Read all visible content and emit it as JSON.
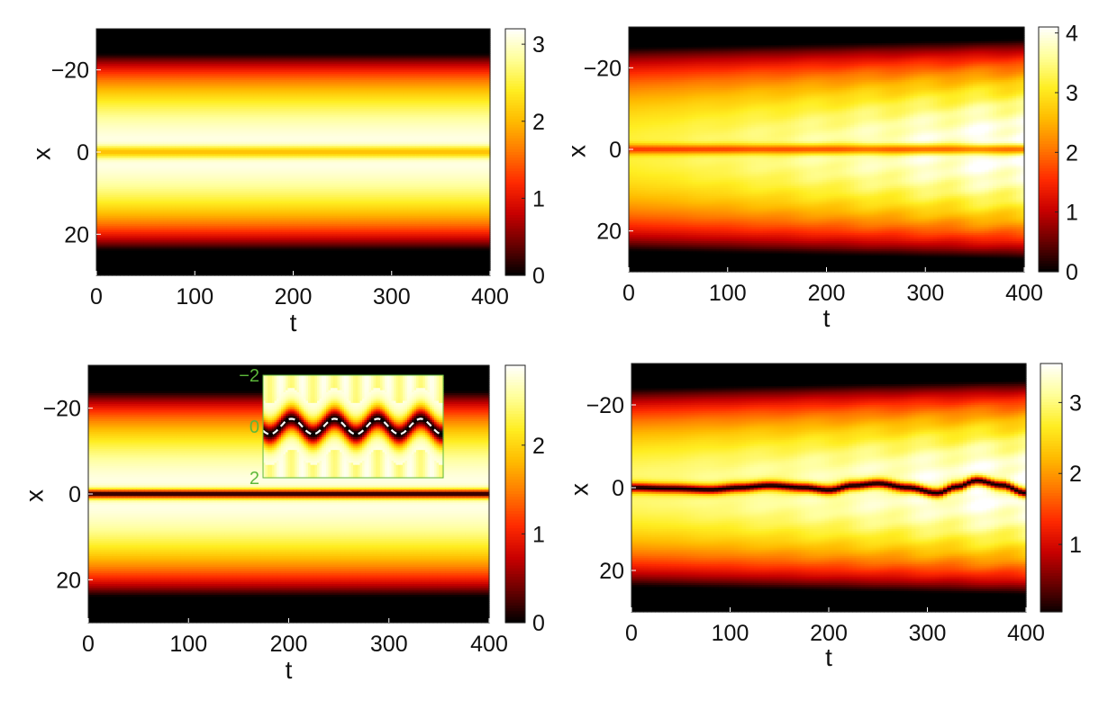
{
  "colormap": {
    "name": "hot",
    "stops": [
      "#000000",
      "#6a0000",
      "#c80000",
      "#ff2a00",
      "#ff7700",
      "#ffbb00",
      "#ffee22",
      "#ffff99",
      "#ffffff"
    ]
  },
  "chart_data": [
    {
      "type": "heatmap",
      "panel": "top-left",
      "xlabel": "t",
      "ylabel": "x",
      "xlim": [
        0,
        400
      ],
      "ylim": [
        -30,
        30
      ],
      "y_reversed": true,
      "xticks": [
        "0",
        "100",
        "200",
        "300",
        "400"
      ],
      "yticks": [
        "−20",
        "0",
        "20"
      ],
      "ytick_values": [
        -20,
        0,
        20
      ],
      "colorbar": {
        "range": [
          0,
          3.2
        ],
        "ticks": [
          "0",
          "1",
          "2",
          "3"
        ],
        "tick_values": [
          0,
          1,
          2,
          3
        ]
      },
      "model": {
        "peak": 3.15,
        "half_width": 24,
        "dip_depth": 0.35,
        "dip_width": 1.5,
        "dark_soliton": false,
        "growth": 0
      }
    },
    {
      "type": "heatmap",
      "panel": "top-right",
      "xlabel": "t",
      "ylabel": "x",
      "xlim": [
        0,
        400
      ],
      "ylim": [
        -30,
        30
      ],
      "y_reversed": true,
      "xticks": [
        "0",
        "100",
        "200",
        "300",
        "400"
      ],
      "yticks": [
        "−20",
        "0",
        "20"
      ],
      "ytick_values": [
        -20,
        0,
        20
      ],
      "colorbar": {
        "range": [
          0,
          4.1
        ],
        "ticks": [
          "0",
          "1",
          "2",
          "3",
          "4"
        ],
        "tick_values": [
          0,
          1,
          2,
          3,
          4
        ]
      },
      "model": {
        "peak": 3.2,
        "half_width": 25,
        "dip_depth": 0.5,
        "dip_width": 1.2,
        "dark_soliton": false,
        "growth": 0.85
      }
    },
    {
      "type": "heatmap",
      "panel": "bottom-left",
      "xlabel": "t",
      "ylabel": "x",
      "xlim": [
        0,
        400
      ],
      "ylim": [
        -30,
        30
      ],
      "y_reversed": true,
      "xticks": [
        "0",
        "100",
        "200",
        "300",
        "400"
      ],
      "yticks": [
        "−20",
        "0",
        "20"
      ],
      "ytick_values": [
        -20,
        0,
        20
      ],
      "colorbar": {
        "range": [
          0,
          2.9
        ],
        "ticks": [
          "0",
          "1",
          "2"
        ],
        "tick_values": [
          0,
          1,
          2
        ]
      },
      "model": {
        "peak": 2.85,
        "half_width": 24,
        "dark_soliton": true,
        "soliton_width": 0.9,
        "growth": 0
      },
      "soliton_trajectory": {
        "t": [
          0,
          50,
          100,
          150,
          200,
          250,
          300,
          350,
          400
        ],
        "x": [
          0,
          0,
          0,
          0,
          0,
          0,
          0,
          0,
          0
        ]
      },
      "inset": {
        "yticks": [
          "−2",
          "0",
          "2"
        ],
        "ytick_values": [
          -2,
          0,
          2
        ],
        "ylim": [
          -2,
          2
        ],
        "xlim": [
          170,
          400
        ],
        "oscillation_amplitude": 0.3,
        "oscillation_period": 55
      }
    },
    {
      "type": "heatmap",
      "panel": "bottom-right",
      "xlabel": "t",
      "ylabel": "x",
      "xlim": [
        0,
        400
      ],
      "ylim": [
        -30,
        30
      ],
      "y_reversed": true,
      "xticks": [
        "0",
        "100",
        "200",
        "300",
        "400"
      ],
      "yticks": [
        "−20",
        "0",
        "20"
      ],
      "ytick_values": [
        -20,
        0,
        20
      ],
      "colorbar": {
        "range": [
          0.05,
          3.55
        ],
        "ticks": [
          "1",
          "2",
          "3"
        ],
        "tick_values": [
          1,
          2,
          3
        ]
      },
      "model": {
        "peak": 3.0,
        "half_width": 24,
        "dark_soliton": true,
        "soliton_width": 1.0,
        "growth": 0.55
      },
      "soliton_trajectory": {
        "t": [
          0,
          40,
          80,
          110,
          140,
          175,
          200,
          225,
          250,
          280,
          310,
          330,
          350,
          375,
          400
        ],
        "x": [
          0,
          0.2,
          0.5,
          0,
          -0.5,
          0,
          0.6,
          -0.5,
          -1.0,
          0,
          1.3,
          -0.2,
          -1.7,
          -0.6,
          1.3
        ]
      }
    }
  ]
}
